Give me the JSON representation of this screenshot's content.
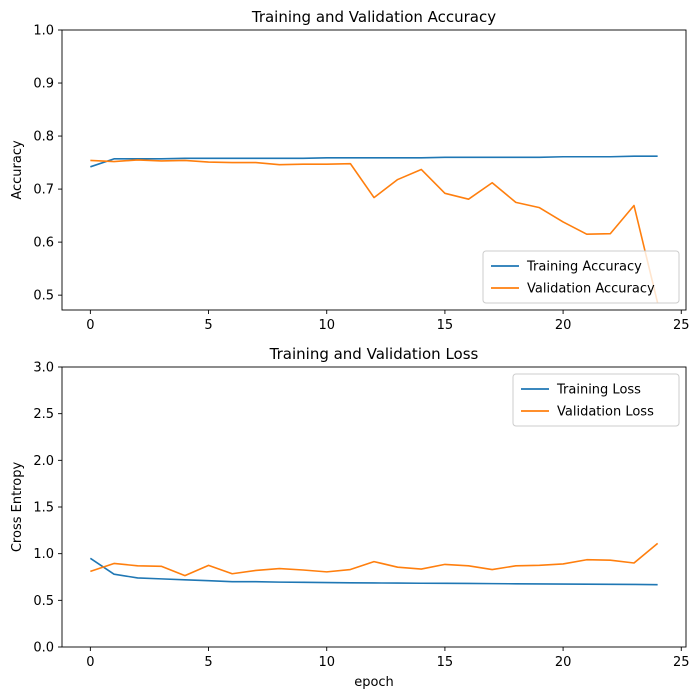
{
  "chart_data": [
    {
      "type": "line",
      "title": "Training and Validation Accuracy",
      "xlabel": "",
      "ylabel": "Accuracy",
      "xlim": [
        -1.2,
        25.2
      ],
      "ylim": [
        0.472,
        1.0
      ],
      "xticks": [
        0,
        5,
        10,
        15,
        20,
        25
      ],
      "yticks": [
        0.5,
        0.6,
        0.7,
        0.8,
        0.9,
        1.0
      ],
      "ytick_labels": [
        "0.5",
        "0.6",
        "0.7",
        "0.8",
        "0.9",
        "1.0"
      ],
      "legend": "lower right",
      "grid": false,
      "x": [
        0,
        1,
        2,
        3,
        4,
        5,
        6,
        7,
        8,
        9,
        10,
        11,
        12,
        13,
        14,
        15,
        16,
        17,
        18,
        19,
        20,
        21,
        22,
        23,
        24
      ],
      "series": [
        {
          "name": "Training Accuracy",
          "color": "#1f77b4",
          "values": [
            0.742,
            0.757,
            0.757,
            0.757,
            0.758,
            0.758,
            0.758,
            0.758,
            0.758,
            0.758,
            0.759,
            0.759,
            0.759,
            0.759,
            0.759,
            0.76,
            0.76,
            0.76,
            0.76,
            0.76,
            0.761,
            0.761,
            0.761,
            0.762,
            0.762
          ]
        },
        {
          "name": "Validation Accuracy",
          "color": "#ff7f0e",
          "values": [
            0.754,
            0.752,
            0.755,
            0.753,
            0.754,
            0.751,
            0.75,
            0.75,
            0.746,
            0.747,
            0.747,
            0.748,
            0.684,
            0.718,
            0.737,
            0.692,
            0.681,
            0.712,
            0.675,
            0.665,
            0.638,
            0.615,
            0.616,
            0.669,
            0.485
          ]
        }
      ]
    },
    {
      "type": "line",
      "title": "Training and Validation Loss",
      "xlabel": "epoch",
      "ylabel": "Cross Entropy",
      "xlim": [
        -1.2,
        25.2
      ],
      "ylim": [
        0.0,
        3.0
      ],
      "xticks": [
        0,
        5,
        10,
        15,
        20,
        25
      ],
      "yticks": [
        0.0,
        0.5,
        1.0,
        1.5,
        2.0,
        2.5,
        3.0
      ],
      "ytick_labels": [
        "0.0",
        "0.5",
        "1.0",
        "1.5",
        "2.0",
        "2.5",
        "3.0"
      ],
      "legend": "upper right",
      "grid": false,
      "x": [
        0,
        1,
        2,
        3,
        4,
        5,
        6,
        7,
        8,
        9,
        10,
        11,
        12,
        13,
        14,
        15,
        16,
        17,
        18,
        19,
        20,
        21,
        22,
        23,
        24
      ],
      "series": [
        {
          "name": "Training Loss",
          "color": "#1f77b4",
          "values": [
            0.95,
            0.78,
            0.74,
            0.73,
            0.72,
            0.71,
            0.7,
            0.7,
            0.695,
            0.693,
            0.69,
            0.688,
            0.686,
            0.685,
            0.683,
            0.682,
            0.681,
            0.679,
            0.677,
            0.676,
            0.674,
            0.673,
            0.672,
            0.67,
            0.668
          ]
        },
        {
          "name": "Validation Loss",
          "color": "#ff7f0e",
          "values": [
            0.81,
            0.895,
            0.87,
            0.865,
            0.765,
            0.875,
            0.785,
            0.82,
            0.84,
            0.825,
            0.805,
            0.83,
            0.915,
            0.855,
            0.835,
            0.885,
            0.87,
            0.83,
            0.87,
            0.875,
            0.89,
            0.935,
            0.93,
            0.9,
            1.11
          ]
        }
      ]
    }
  ]
}
